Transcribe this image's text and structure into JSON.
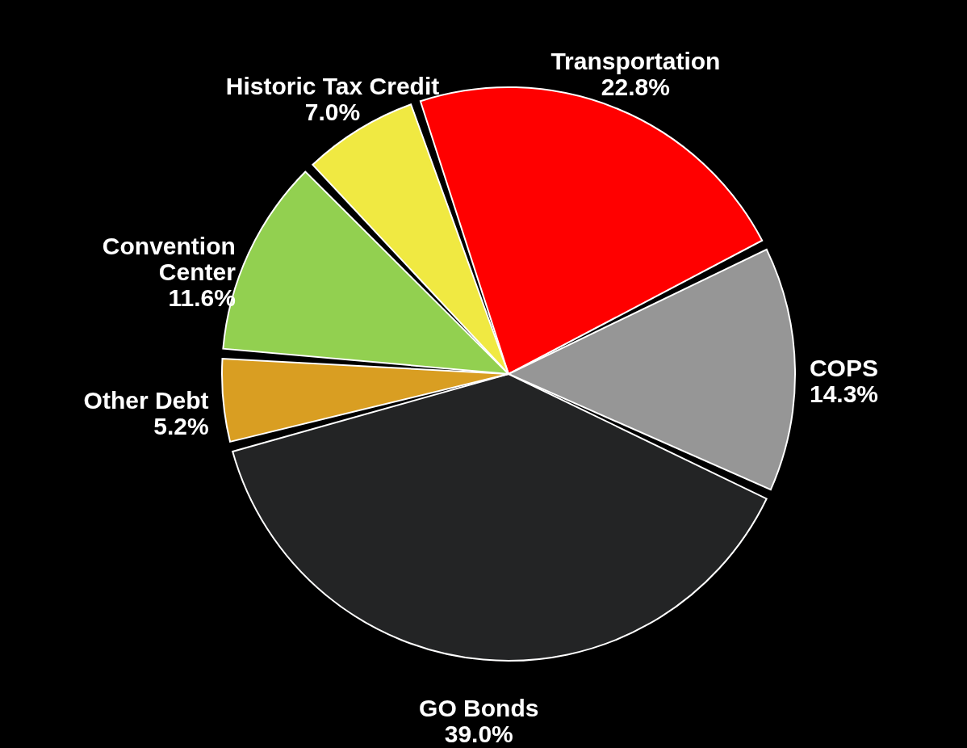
{
  "chart_data": {
    "type": "pie",
    "categories": [
      "Transportation",
      "COPS",
      "GO Bonds",
      "Other Debt",
      "Convention Center",
      "Historic Tax Credit"
    ],
    "values": [
      22.8,
      14.3,
      39.0,
      5.2,
      11.6,
      7.0
    ],
    "colors": [
      "#ff0000",
      "#969696",
      "#232425",
      "#d99e22",
      "#92d050",
      "#f0e942"
    ],
    "value_labels": [
      "22.8%",
      "14.3%",
      "39.0%",
      "5.2%",
      "11.6%",
      "7.0%"
    ]
  }
}
